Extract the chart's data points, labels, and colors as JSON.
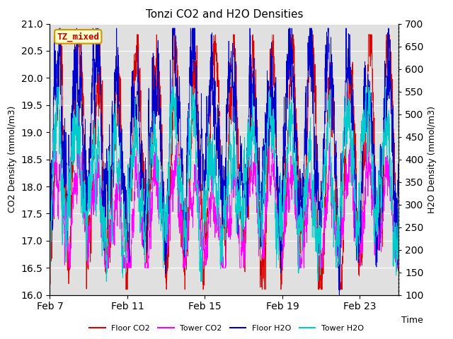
{
  "title": "Tonzi CO2 and H2O Densities",
  "xlabel": "Time",
  "ylabel_left": "CO2 Density (mmol/m3)",
  "ylabel_right": "H2O Density (mmol/m3)",
  "ylim_left": [
    16.0,
    21.0
  ],
  "ylim_right": [
    100,
    700
  ],
  "xtick_labels": [
    "Feb 7",
    "Feb 11",
    "Feb 15",
    "Feb 19",
    "Feb 23"
  ],
  "xtick_positions": [
    0,
    4,
    8,
    12,
    16
  ],
  "annotation_text": "TZ_mixed",
  "annotation_color": "#cc0000",
  "annotation_bg": "#ffffcc",
  "annotation_border": "#cc9900",
  "colors": {
    "floor_co2": "#dd0000",
    "tower_co2": "#ff00ff",
    "floor_h2o": "#0000cc",
    "tower_h2o": "#00cccc"
  },
  "legend_labels": [
    "Floor CO2",
    "Tower CO2",
    "Floor H2O",
    "Tower H2O"
  ],
  "plot_bg": "#e0e0e0",
  "grid_color": "#ffffff",
  "n_days": 18,
  "pts_per_day": 144,
  "seed": 12345
}
